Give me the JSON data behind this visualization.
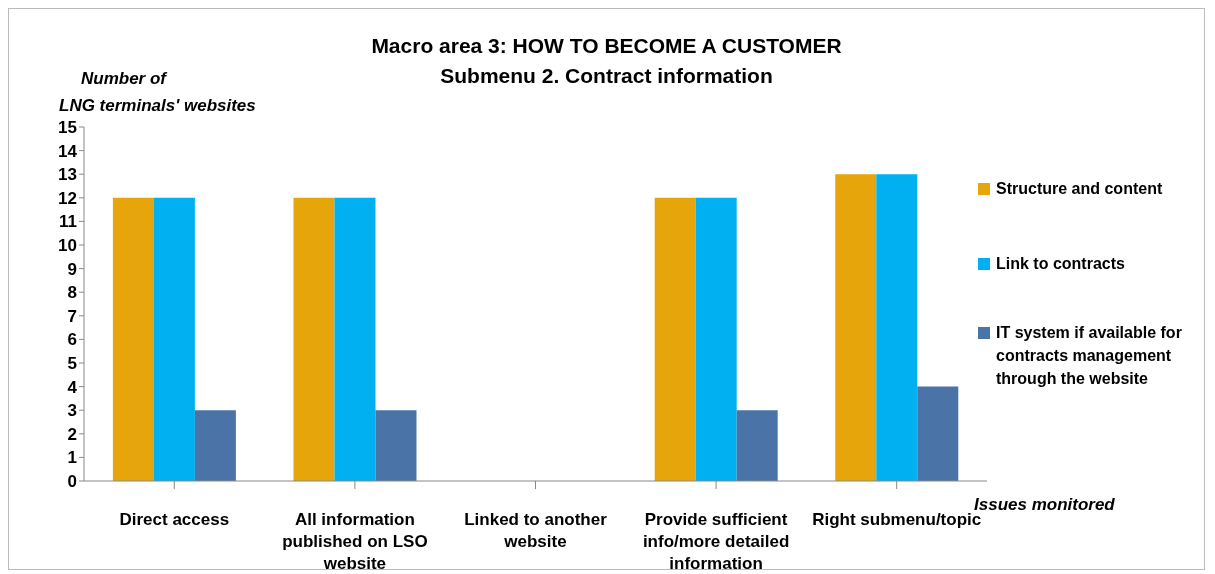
{
  "chart_data": {
    "type": "bar",
    "title": "Macro area 3: HOW TO BECOME A CUSTOMER\nSubmenu 2. Contract information",
    "ylabel": "Number of\nLNG terminals' websites",
    "xlabel": "Issues monitored",
    "categories": [
      "Direct access",
      "All information published on LSO website",
      "Linked to another website",
      "Provide sufficient info/more detailed information",
      "Right submenu/topic"
    ],
    "series": [
      {
        "name": "Structure and content",
        "color": "#e6a50a",
        "values": [
          12,
          12,
          0,
          12,
          13
        ]
      },
      {
        "name": "Link to contracts",
        "color": "#00b0f0",
        "values": [
          12,
          12,
          0,
          12,
          13
        ]
      },
      {
        "name": "IT system if available for contracts management through the website",
        "color": "#4a74a8",
        "values": [
          3,
          3,
          0,
          3,
          4
        ]
      }
    ],
    "ylim": [
      0,
      15
    ],
    "yticks": [
      0,
      1,
      2,
      3,
      4,
      5,
      6,
      7,
      8,
      9,
      10,
      11,
      12,
      13,
      14,
      15
    ],
    "grid": false,
    "legend": "right"
  }
}
